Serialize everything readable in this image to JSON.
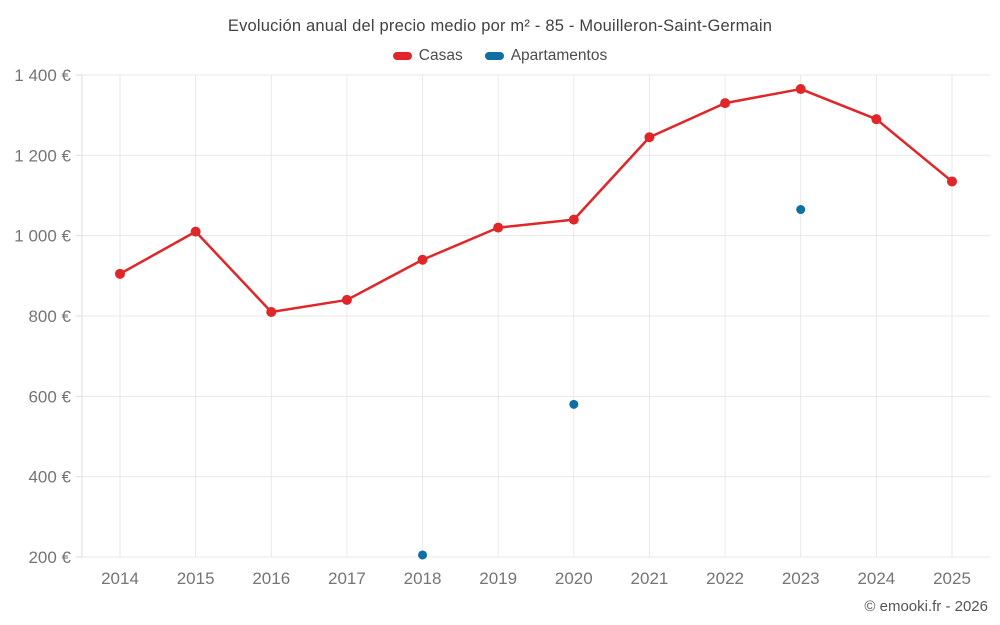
{
  "chart_data": {
    "type": "line",
    "title": "Evolución anual del precio medio por m² - 85 - Mouilleron-Saint-Germain",
    "categories": [
      "2014",
      "2015",
      "2016",
      "2017",
      "2018",
      "2019",
      "2020",
      "2021",
      "2022",
      "2023",
      "2024",
      "2025"
    ],
    "series": [
      {
        "name": "Casas",
        "type": "line",
        "color": "#e02629",
        "values": [
          905,
          1010,
          810,
          840,
          940,
          1020,
          1040,
          1245,
          1330,
          1365,
          1290,
          1135
        ]
      },
      {
        "name": "Apartamentos",
        "type": "scatter",
        "color": "#0f6fa3",
        "values": [
          null,
          null,
          null,
          null,
          205,
          null,
          580,
          null,
          null,
          1065,
          null,
          null
        ]
      }
    ],
    "xlabel": "",
    "ylabel": "",
    "ylim": [
      200,
      1400
    ],
    "ytick_step": 200,
    "ytick_suffix": " €",
    "grid": true,
    "legend_position": "top",
    "grid_color": "#e8e8e8",
    "axis_color": "#dcdcdc",
    "tick_label_color": "#757575"
  },
  "footer": {
    "copyright": "© emooki.fr - 2026"
  }
}
